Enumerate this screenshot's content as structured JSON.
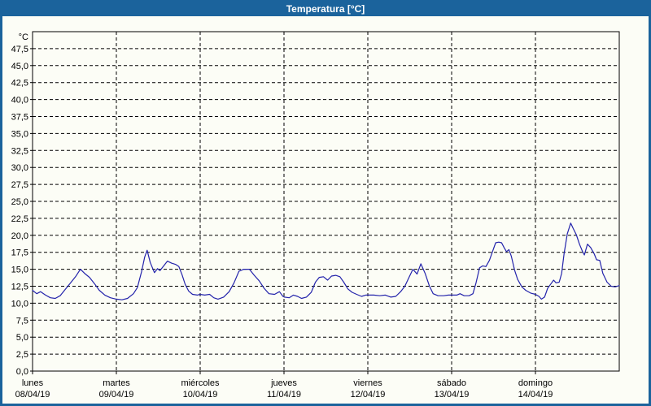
{
  "window": {
    "title": "Temperatura [°C]"
  },
  "colors": {
    "titlebar": "#1b639c",
    "frame": "#1b639c",
    "background": "#fcfdf6",
    "plot_border": "#000000",
    "gridline": "#000000",
    "series": "#2323ab",
    "label": "#000000"
  },
  "chart_data": {
    "type": "line",
    "title": "Temperatura [°C]",
    "y_unit": "°C",
    "ylabel": "",
    "xlabel": "",
    "ylim": [
      0,
      50
    ],
    "ytick_step": 2.5,
    "ytick_label_max": 47.5,
    "decimal_separator": ",",
    "grid": true,
    "grid_style": "dashed",
    "legend_position": "none",
    "x_axis": {
      "range_hours": [
        0,
        168
      ],
      "day_width_hours": 24,
      "days": [
        {
          "weekday": "lunes",
          "date": "08/04/19"
        },
        {
          "weekday": "martes",
          "date": "09/04/19"
        },
        {
          "weekday": "miércoles",
          "date": "10/04/19"
        },
        {
          "weekday": "jueves",
          "date": "11/04/19"
        },
        {
          "weekday": "viernes",
          "date": "12/04/19"
        },
        {
          "weekday": "sábado",
          "date": "13/04/19"
        },
        {
          "weekday": "domingo",
          "date": "14/04/19"
        }
      ]
    },
    "series": [
      {
        "name": "Temperatura",
        "unit": "°C",
        "color": "#2323ab",
        "points_hour_value": [
          [
            0,
            11.9
          ],
          [
            1.2,
            11.4
          ],
          [
            2.3,
            11.7
          ],
          [
            3.7,
            11.2
          ],
          [
            5.1,
            10.8
          ],
          [
            6.5,
            10.7
          ],
          [
            7.9,
            11.1
          ],
          [
            9.3,
            12.0
          ],
          [
            10.9,
            13.0
          ],
          [
            12.3,
            13.9
          ],
          [
            13.7,
            15.0
          ],
          [
            14.9,
            14.4
          ],
          [
            16.3,
            13.8
          ],
          [
            17.7,
            12.9
          ],
          [
            19.1,
            11.9
          ],
          [
            20.7,
            11.2
          ],
          [
            22.3,
            10.8
          ],
          [
            24,
            10.6
          ],
          [
            25.6,
            10.5
          ],
          [
            27.2,
            10.7
          ],
          [
            28.9,
            11.4
          ],
          [
            30,
            12.3
          ],
          [
            31.2,
            14.6
          ],
          [
            32.1,
            16.8
          ],
          [
            32.8,
            17.8
          ],
          [
            33.7,
            16.0
          ],
          [
            34.9,
            14.5
          ],
          [
            35.8,
            15.1
          ],
          [
            36.5,
            14.8
          ],
          [
            37.7,
            15.6
          ],
          [
            38.6,
            16.2
          ],
          [
            39.8,
            15.9
          ],
          [
            41,
            15.7
          ],
          [
            41.9,
            15.4
          ],
          [
            42.8,
            14.2
          ],
          [
            43.7,
            12.8
          ],
          [
            44.7,
            11.8
          ],
          [
            45.8,
            11.3
          ],
          [
            47.2,
            11.2
          ],
          [
            47.9,
            11.3
          ],
          [
            49.3,
            11.2
          ],
          [
            50.7,
            11.3
          ],
          [
            51.9,
            10.8
          ],
          [
            53.1,
            10.6
          ],
          [
            54.7,
            10.9
          ],
          [
            56.3,
            11.7
          ],
          [
            57.7,
            13.0
          ],
          [
            59.1,
            14.7
          ],
          [
            60.5,
            15.0
          ],
          [
            62.1,
            15.0
          ],
          [
            63.5,
            14.1
          ],
          [
            64.9,
            13.3
          ],
          [
            66.3,
            12.2
          ],
          [
            67.7,
            11.4
          ],
          [
            69.3,
            11.3
          ],
          [
            70.7,
            11.7
          ],
          [
            71.7,
            11.0
          ],
          [
            72.1,
            10.9
          ],
          [
            73.5,
            10.8
          ],
          [
            74.7,
            11.2
          ],
          [
            75.9,
            11.0
          ],
          [
            77,
            10.7
          ],
          [
            78.4,
            10.9
          ],
          [
            79.8,
            11.6
          ],
          [
            81,
            13.1
          ],
          [
            82.1,
            13.8
          ],
          [
            83.3,
            13.9
          ],
          [
            84.5,
            13.4
          ],
          [
            85.6,
            14.0
          ],
          [
            86.8,
            14.1
          ],
          [
            88,
            13.9
          ],
          [
            89.1,
            13.1
          ],
          [
            90.3,
            12.1
          ],
          [
            91.5,
            11.6
          ],
          [
            92.8,
            11.3
          ],
          [
            94.2,
            11.0
          ],
          [
            95.4,
            11.2
          ],
          [
            96.1,
            11.2
          ],
          [
            97.7,
            11.2
          ],
          [
            99.4,
            11.1
          ],
          [
            101,
            11.2
          ],
          [
            102.6,
            10.9
          ],
          [
            104,
            11.0
          ],
          [
            105.4,
            11.7
          ],
          [
            106.6,
            12.5
          ],
          [
            107.7,
            13.7
          ],
          [
            108.9,
            15.0
          ],
          [
            110.1,
            14.3
          ],
          [
            111.2,
            15.8
          ],
          [
            112.4,
            14.4
          ],
          [
            113.6,
            12.6
          ],
          [
            114.7,
            11.4
          ],
          [
            116.1,
            11.1
          ],
          [
            117.7,
            11.1
          ],
          [
            119.1,
            11.2
          ],
          [
            120.1,
            11.2
          ],
          [
            121.5,
            11.2
          ],
          [
            122.4,
            11.4
          ],
          [
            123.6,
            11.1
          ],
          [
            125,
            11.1
          ],
          [
            126.1,
            11.4
          ],
          [
            127,
            13.0
          ],
          [
            128,
            15.2
          ],
          [
            128.9,
            15.5
          ],
          [
            129.8,
            15.4
          ],
          [
            130.8,
            16.3
          ],
          [
            131.7,
            17.6
          ],
          [
            132.6,
            18.9
          ],
          [
            133.5,
            19.0
          ],
          [
            134.3,
            18.9
          ],
          [
            135,
            18.2
          ],
          [
            135.7,
            17.6
          ],
          [
            136.4,
            17.9
          ],
          [
            137.1,
            16.9
          ],
          [
            138,
            14.9
          ],
          [
            138.9,
            13.5
          ],
          [
            140.1,
            12.4
          ],
          [
            141.2,
            11.9
          ],
          [
            142.6,
            11.5
          ],
          [
            144,
            11.3
          ],
          [
            145,
            11.0
          ],
          [
            145.7,
            10.6
          ],
          [
            146.6,
            10.9
          ],
          [
            147.5,
            12.2
          ],
          [
            148.5,
            12.9
          ],
          [
            149.2,
            13.4
          ],
          [
            149.9,
            13.0
          ],
          [
            150.8,
            13.1
          ],
          [
            151.5,
            14.4
          ],
          [
            152.2,
            17.3
          ],
          [
            153.1,
            20.2
          ],
          [
            154.1,
            21.8
          ],
          [
            154.8,
            21.0
          ],
          [
            155.7,
            20.1
          ],
          [
            156.6,
            18.7
          ],
          [
            157.5,
            17.6
          ],
          [
            158,
            17.1
          ],
          [
            158.9,
            18.7
          ],
          [
            159.8,
            18.2
          ],
          [
            160.8,
            17.3
          ],
          [
            161.5,
            16.4
          ],
          [
            162.4,
            16.3
          ],
          [
            163.3,
            14.4
          ],
          [
            164.5,
            13.1
          ],
          [
            165.7,
            12.5
          ],
          [
            166.8,
            12.4
          ],
          [
            168,
            12.6
          ]
        ]
      }
    ]
  }
}
